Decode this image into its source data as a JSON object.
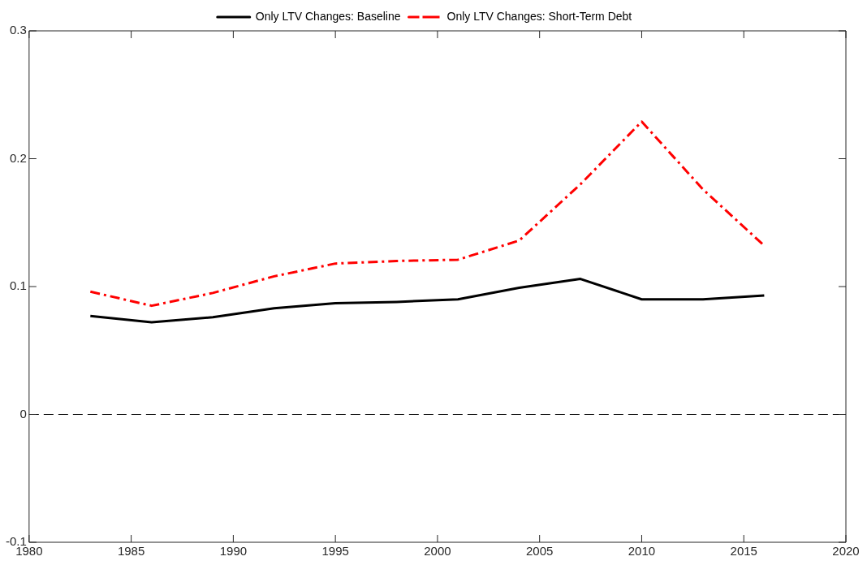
{
  "chart_data": {
    "type": "line",
    "x": [
      1983,
      1986,
      1989,
      1992,
      1995,
      1998,
      2001,
      2004,
      2007,
      2010,
      2013,
      2016
    ],
    "series": [
      {
        "name": "Only LTV Changes: Baseline",
        "color": "#000000",
        "line_style": "solid",
        "values": [
          0.077,
          0.072,
          0.076,
          0.083,
          0.087,
          0.088,
          0.09,
          0.099,
          0.106,
          0.09,
          0.09,
          0.093
        ]
      },
      {
        "name": "Only LTV Changes: Short-Term Debt",
        "color": "#ff0000",
        "line_style": "dashed",
        "values": [
          0.096,
          0.085,
          0.095,
          0.108,
          0.118,
          0.12,
          0.121,
          0.136,
          0.18,
          0.229,
          0.176,
          0.132
        ]
      }
    ],
    "xlim": [
      1980,
      2020
    ],
    "xticks": [
      1980,
      1985,
      1990,
      1995,
      2000,
      2005,
      2010,
      2015,
      2020
    ],
    "ylim": [
      -0.1,
      0.3
    ],
    "yticks": [
      -0.1,
      0,
      0.1,
      0.2,
      0.3
    ],
    "ref_lines": [
      {
        "axis": "y",
        "value": 0,
        "color": "#000000",
        "line_style": "dashed"
      }
    ],
    "grid": false,
    "legend": "top",
    "marker": "none"
  }
}
